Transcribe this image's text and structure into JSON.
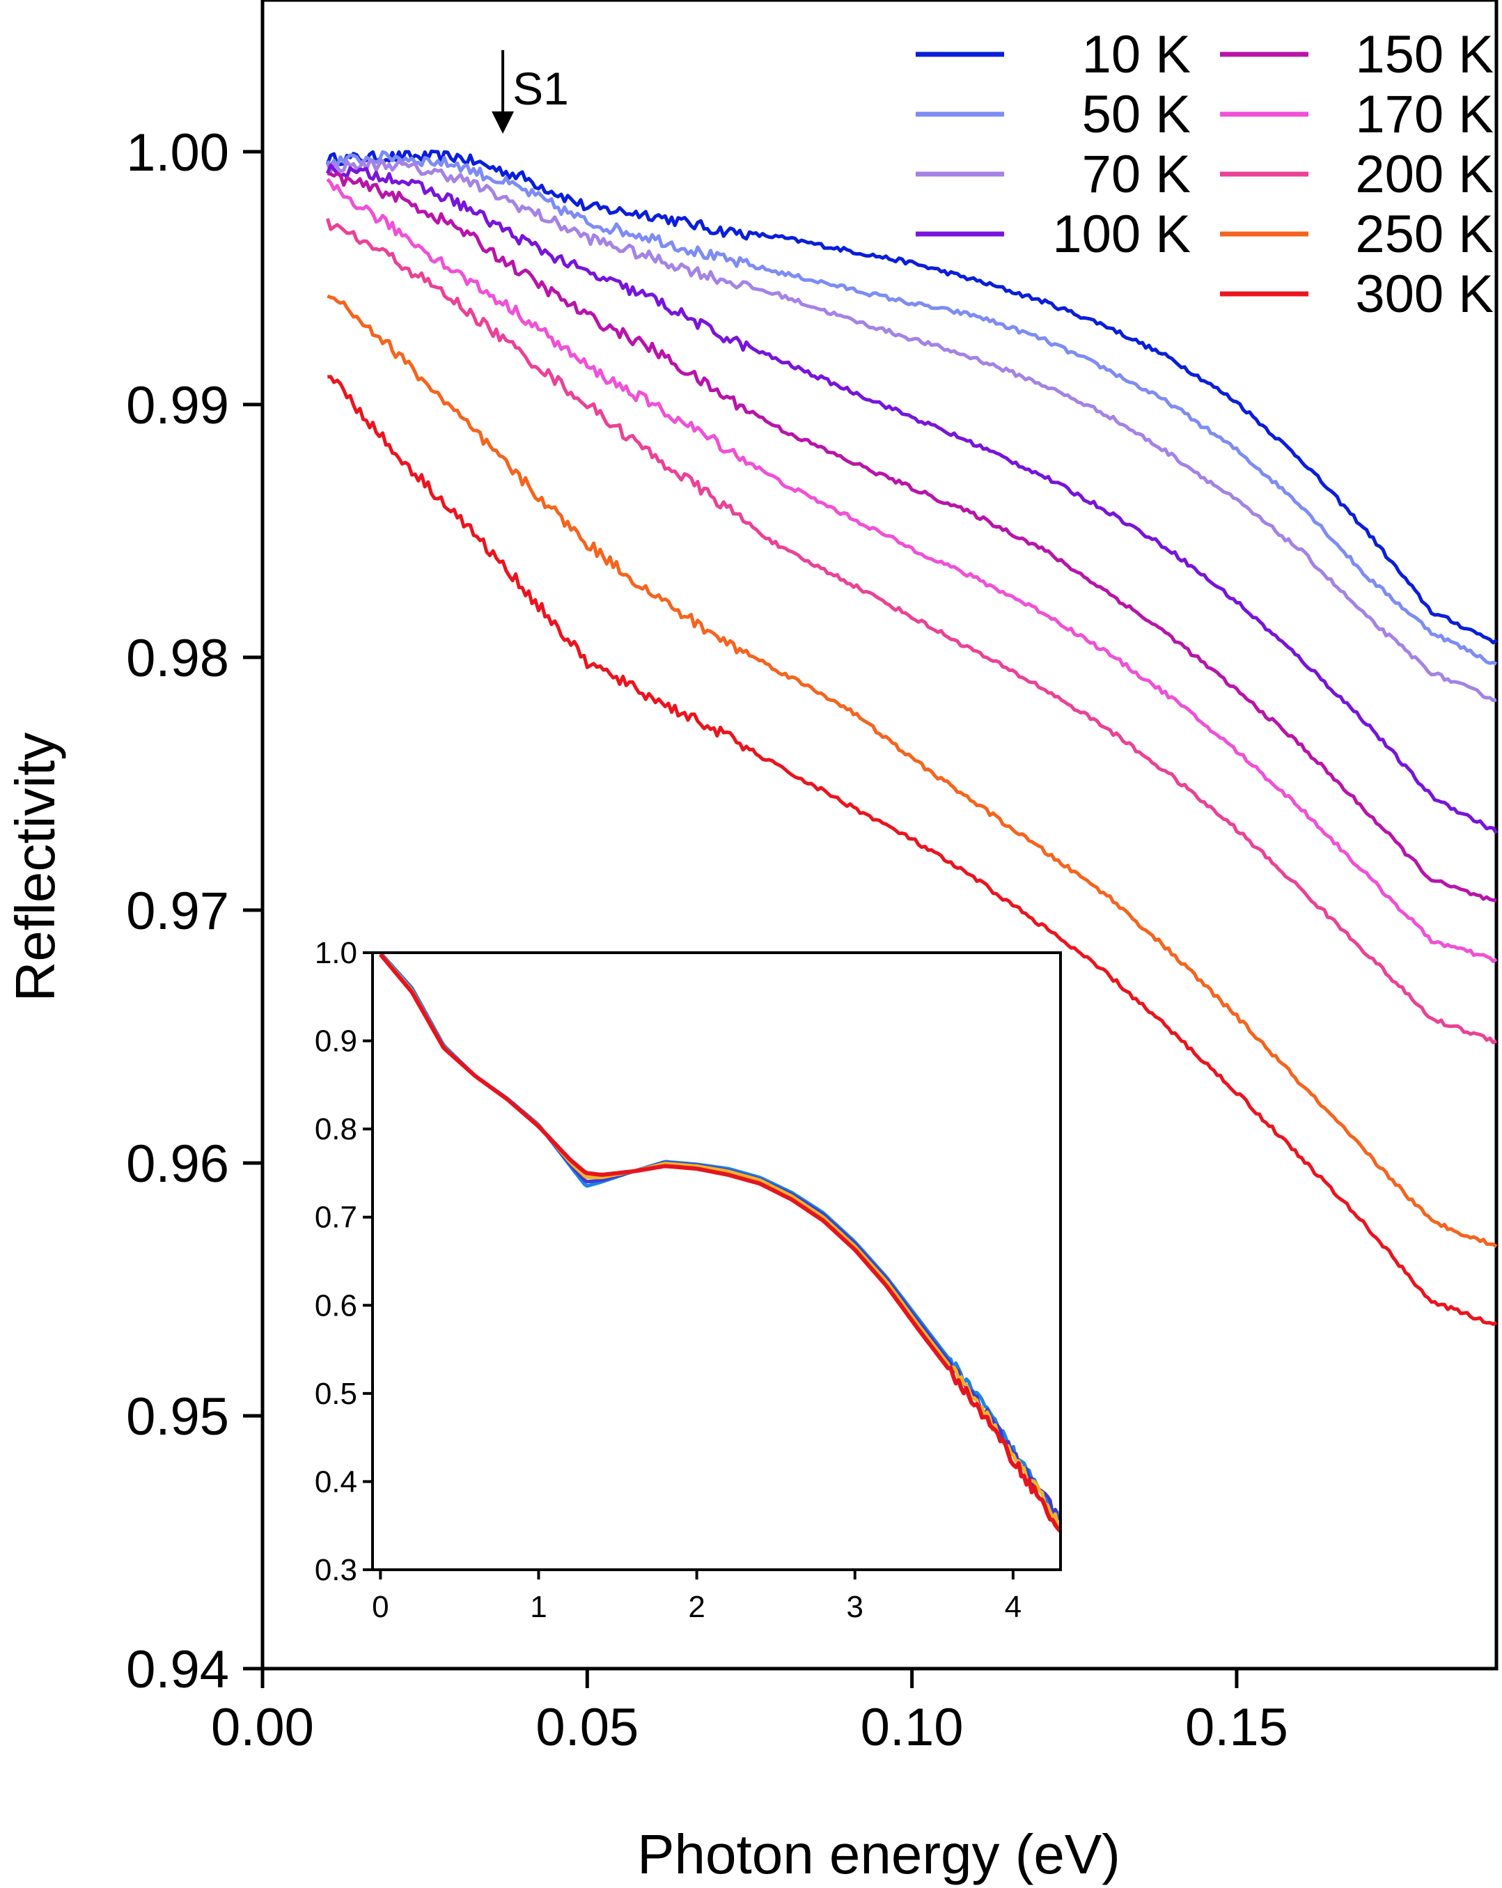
{
  "chart_data": [
    {
      "type": "line",
      "role": "main",
      "title": "",
      "xlabel": "Photon energy (eV)",
      "ylabel": "Reflectivity",
      "xlim": [
        0.0,
        0.19
      ],
      "ylim": [
        0.94,
        1.006
      ],
      "xticks": [
        0.0,
        0.05,
        0.1,
        0.15
      ],
      "xtick_labels": [
        "0.00",
        "0.05",
        "0.10",
        "0.15"
      ],
      "yticks": [
        0.94,
        0.95,
        0.96,
        0.97,
        0.98,
        0.99,
        1.0
      ],
      "ytick_labels": [
        "0.94",
        "0.95",
        "0.96",
        "0.97",
        "0.98",
        "0.99",
        "1.00"
      ],
      "grid": false,
      "legend_position": "top-right",
      "annotation": {
        "text": "S1",
        "x": 0.037
      },
      "x": [
        0.01,
        0.02,
        0.03,
        0.04,
        0.05,
        0.06,
        0.07,
        0.08,
        0.09,
        0.1,
        0.11,
        0.12,
        0.13,
        0.14,
        0.15,
        0.16,
        0.17,
        0.18,
        0.19
      ],
      "series": [
        {
          "name": "10 K",
          "color": "#0a1edc",
          "values": [
            0.9997,
            0.9998,
            0.9998,
            0.999,
            0.9978,
            0.9975,
            0.9969,
            0.9966,
            0.9961,
            0.9956,
            0.9949,
            0.9941,
            0.9931,
            0.9918,
            0.9901,
            0.9878,
            0.985,
            0.9818,
            0.9806
          ]
        },
        {
          "name": "50 K",
          "color": "#7d8cf5",
          "values": [
            0.9996,
            0.9998,
            0.9995,
            0.9985,
            0.9972,
            0.9966,
            0.9958,
            0.9952,
            0.9946,
            0.994,
            0.9935,
            0.9926,
            0.9914,
            0.99,
            0.9882,
            0.986,
            0.9832,
            0.981,
            0.9797
          ]
        },
        {
          "name": "70 K",
          "color": "#a582e6",
          "values": [
            0.9994,
            0.9995,
            0.999,
            0.9978,
            0.9966,
            0.9958,
            0.995,
            0.9943,
            0.9934,
            0.9926,
            0.9918,
            0.9908,
            0.9896,
            0.988,
            0.9862,
            0.9842,
            0.9816,
            0.9794,
            0.9783
          ]
        },
        {
          "name": "100 K",
          "color": "#7814dc",
          "values": [
            0.9993,
            0.999,
            0.998,
            0.9965,
            0.9952,
            0.9942,
            0.9928,
            0.9917,
            0.9906,
            0.9895,
            0.9884,
            0.9872,
            0.9858,
            0.9842,
            0.9822,
            0.9799,
            0.9774,
            0.9745,
            0.9731
          ]
        },
        {
          "name": "150 K",
          "color": "#b914aa",
          "values": [
            0.9991,
            0.9983,
            0.997,
            0.9952,
            0.9935,
            0.9922,
            0.9905,
            0.989,
            0.9878,
            0.9867,
            0.9856,
            0.9843,
            0.9826,
            0.9808,
            0.9787,
            0.9765,
            0.9739,
            0.9712,
            0.9703
          ]
        },
        {
          "name": "170 K",
          "color": "#f050d7",
          "values": [
            0.9987,
            0.997,
            0.9952,
            0.9935,
            0.9915,
            0.99,
            0.9885,
            0.9869,
            0.9856,
            0.9843,
            0.9831,
            0.9818,
            0.9802,
            0.9784,
            0.9763,
            0.974,
            0.9714,
            0.9688,
            0.968
          ]
        },
        {
          "name": "200 K",
          "color": "#eb4196",
          "values": [
            0.9972,
            0.9958,
            0.994,
            0.992,
            0.99,
            0.988,
            0.9862,
            0.9843,
            0.983,
            0.9816,
            0.9802,
            0.9788,
            0.9772,
            0.9753,
            0.9732,
            0.9708,
            0.9683,
            0.9657,
            0.9648
          ]
        },
        {
          "name": "250 K",
          "color": "#f5641e",
          "values": [
            0.9945,
            0.9922,
            0.9896,
            0.987,
            0.9845,
            0.9825,
            0.9808,
            0.9794,
            0.978,
            0.976,
            0.9742,
            0.9724,
            0.9706,
            0.9683,
            0.9658,
            0.9631,
            0.9604,
            0.9577,
            0.9567
          ]
        },
        {
          "name": "300 K",
          "color": "#eb141e",
          "values": [
            0.9913,
            0.9882,
            0.9856,
            0.9828,
            0.9798,
            0.9784,
            0.9771,
            0.9756,
            0.9742,
            0.9728,
            0.9712,
            0.9694,
            0.9675,
            0.9652,
            0.9628,
            0.9602,
            0.9575,
            0.9545,
            0.9536
          ]
        }
      ]
    },
    {
      "type": "line",
      "role": "inset",
      "title": "",
      "xlabel": "",
      "ylabel": "",
      "xlim": [
        -0.05,
        4.3
      ],
      "ylim": [
        0.3,
        1.0
      ],
      "xticks": [
        0,
        1,
        2,
        3,
        4
      ],
      "xtick_labels": [
        "0",
        "1",
        "2",
        "3",
        "4"
      ],
      "yticks": [
        0.3,
        0.4,
        0.5,
        0.6,
        0.7,
        0.8,
        0.9,
        1.0
      ],
      "ytick_labels": [
        "0.3",
        "0.4",
        "0.5",
        "0.6",
        "0.7",
        "0.8",
        "0.9",
        "1.0"
      ],
      "grid": false,
      "x": [
        0.0,
        0.2,
        0.4,
        0.6,
        0.8,
        1.0,
        1.2,
        1.3,
        1.4,
        1.6,
        1.8,
        2.0,
        2.2,
        2.4,
        2.6,
        2.8,
        3.0,
        3.2,
        3.4,
        3.6,
        3.8,
        4.0,
        4.2,
        4.3
      ],
      "series": [
        {
          "name": "10 K",
          "color": "#1e82e6",
          "values": [
            1.0,
            0.96,
            0.895,
            0.86,
            0.835,
            0.805,
            0.758,
            0.735,
            0.74,
            0.752,
            0.763,
            0.76,
            0.755,
            0.745,
            0.728,
            0.705,
            0.672,
            0.632,
            0.585,
            0.538,
            0.49,
            0.435,
            0.385,
            0.36
          ]
        },
        {
          "name": "100 K",
          "color": "#3c3cd2",
          "values": [
            0.999,
            0.958,
            0.893,
            0.86,
            0.834,
            0.804,
            0.76,
            0.74,
            0.742,
            0.752,
            0.762,
            0.759,
            0.753,
            0.743,
            0.726,
            0.703,
            0.67,
            0.63,
            0.582,
            0.535,
            0.487,
            0.432,
            0.382,
            0.355
          ]
        },
        {
          "name": "200 K",
          "color": "#f0b428",
          "values": [
            0.999,
            0.957,
            0.893,
            0.86,
            0.834,
            0.804,
            0.762,
            0.745,
            0.745,
            0.752,
            0.761,
            0.758,
            0.752,
            0.742,
            0.724,
            0.7,
            0.667,
            0.627,
            0.578,
            0.531,
            0.483,
            0.43,
            0.378,
            0.348
          ]
        },
        {
          "name": "300 K",
          "color": "#e6141e",
          "values": [
            0.998,
            0.955,
            0.892,
            0.86,
            0.834,
            0.803,
            0.765,
            0.75,
            0.748,
            0.752,
            0.758,
            0.755,
            0.748,
            0.738,
            0.72,
            0.696,
            0.663,
            0.622,
            0.573,
            0.526,
            0.478,
            0.425,
            0.372,
            0.34
          ]
        }
      ]
    }
  ]
}
